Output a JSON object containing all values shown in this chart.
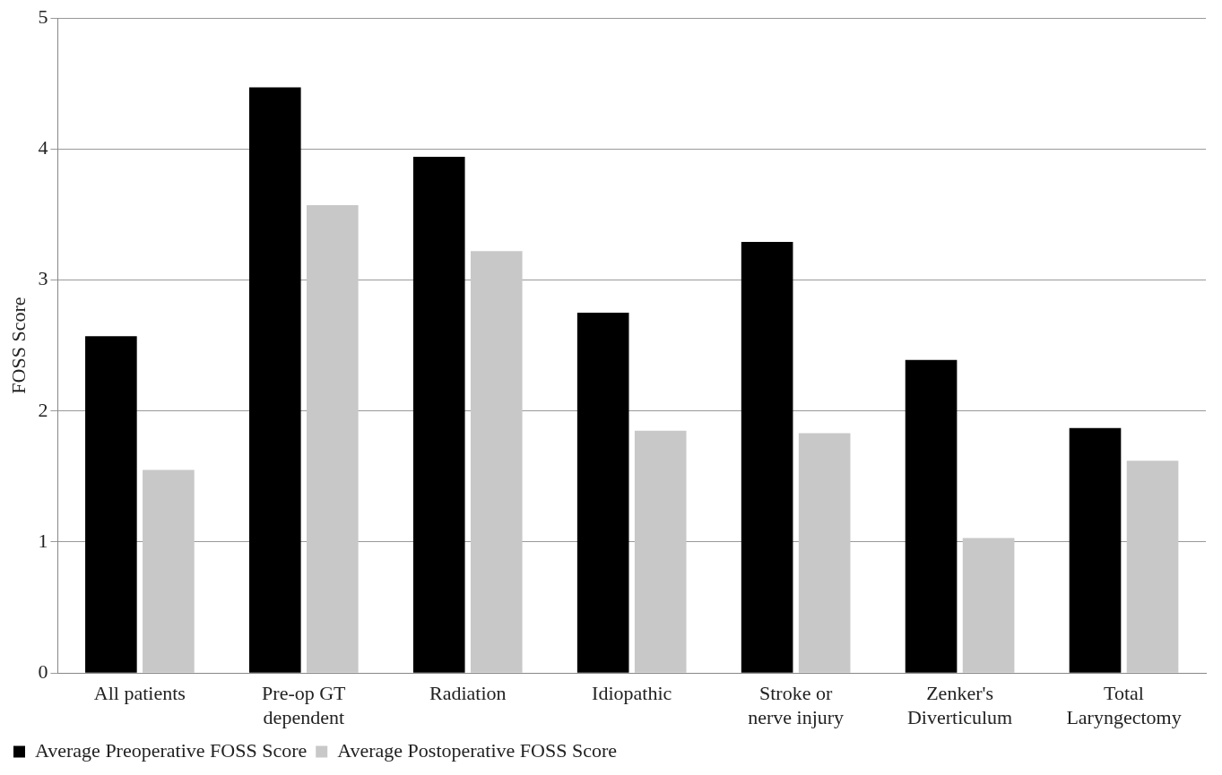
{
  "chart_data": {
    "type": "bar",
    "ylabel": "FOSS Score",
    "categories": [
      "All patients",
      "Pre-op GT dependent",
      "Radiation",
      "Idiopathic",
      "Stroke or nerve injury",
      "Zenker's Diverticulum",
      "Total Laryngectomy"
    ],
    "series": [
      {
        "name": "Average Preoperative FOSS Score",
        "color": "#000000",
        "values": [
          2.57,
          4.47,
          3.94,
          2.75,
          3.29,
          2.39,
          1.87
        ]
      },
      {
        "name": "Average Postoperative FOSS Score",
        "color": "#c8c8c8",
        "values": [
          1.55,
          3.57,
          3.22,
          1.85,
          1.83,
          1.03,
          1.62
        ]
      }
    ],
    "ylim": [
      0,
      5
    ],
    "yticks": [
      0,
      1,
      2,
      3,
      4,
      5
    ],
    "grid": "y",
    "legend": "bottom left"
  }
}
